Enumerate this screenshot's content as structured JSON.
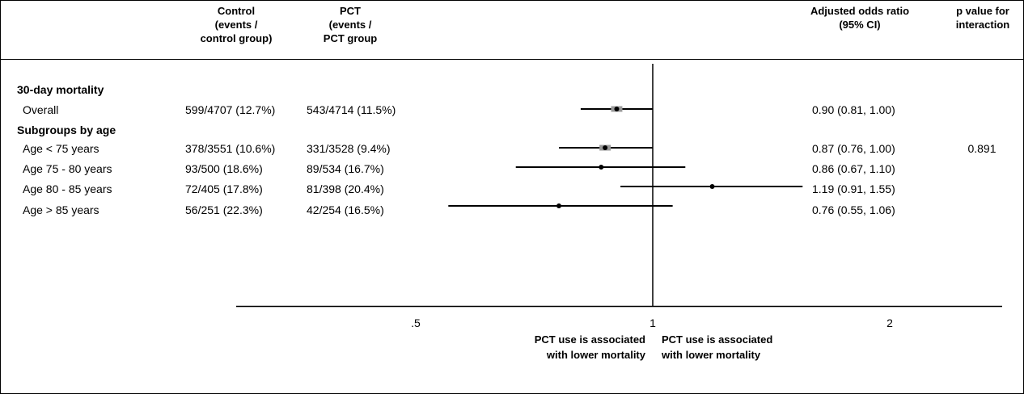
{
  "chart_data": {
    "type": "forest",
    "x_scale": "log",
    "x_ticks": [
      ".5",
      "1",
      "2"
    ],
    "x_tick_values": [
      0.5,
      1,
      2
    ],
    "xlim": [
      0.25,
      2.8
    ],
    "reference_line": 1,
    "headers": {
      "control": [
        "Control",
        "(events /",
        "control group)"
      ],
      "pct": [
        "PCT",
        "(events /",
        "PCT group"
      ],
      "or": [
        "Adjusted odds ratio",
        "(95% CI)"
      ],
      "p": [
        "p value for",
        "interaction"
      ]
    },
    "sections": [
      {
        "label": "30-day mortality"
      },
      {
        "label": "Subgroups by age"
      }
    ],
    "rows": [
      {
        "label": "Overall",
        "control": "599/4707 (12.7%)",
        "pct": "543/4714 (11.5%)",
        "or_text": "0.90 (0.81, 1.00)",
        "p": "",
        "or": 0.9,
        "lo": 0.81,
        "hi": 1.0,
        "weight": "large"
      },
      {
        "label": "Age < 75 years",
        "control": "378/3551 (10.6%)",
        "pct": "331/3528 (9.4%)",
        "or_text": "0.87 (0.76, 1.00)",
        "p": "0.891",
        "or": 0.87,
        "lo": 0.76,
        "hi": 1.0,
        "weight": "large"
      },
      {
        "label": "Age 75 - 80 years",
        "control": "93/500 (18.6%)",
        "pct": "89/534 (16.7%)",
        "or_text": "0.86 (0.67, 1.10)",
        "p": "",
        "or": 0.86,
        "lo": 0.67,
        "hi": 1.1,
        "weight": "small"
      },
      {
        "label": "Age 80 - 85 years",
        "control": "72/405 (17.8%)",
        "pct": "81/398 (20.4%)",
        "or_text": "1.19 (0.91, 1.55)",
        "p": "",
        "or": 1.19,
        "lo": 0.91,
        "hi": 1.55,
        "weight": "small"
      },
      {
        "label": "Age > 85 years",
        "control": "56/251 (22.3%)",
        "pct": "42/254 (16.5%)",
        "or_text": "0.76 (0.55, 1.06)",
        "p": "",
        "or": 0.76,
        "lo": 0.55,
        "hi": 1.06,
        "weight": "small"
      }
    ],
    "captions": {
      "left": [
        "PCT use is associated",
        "with lower mortality"
      ],
      "right": [
        "PCT use is associated",
        "with lower mortality"
      ]
    }
  }
}
